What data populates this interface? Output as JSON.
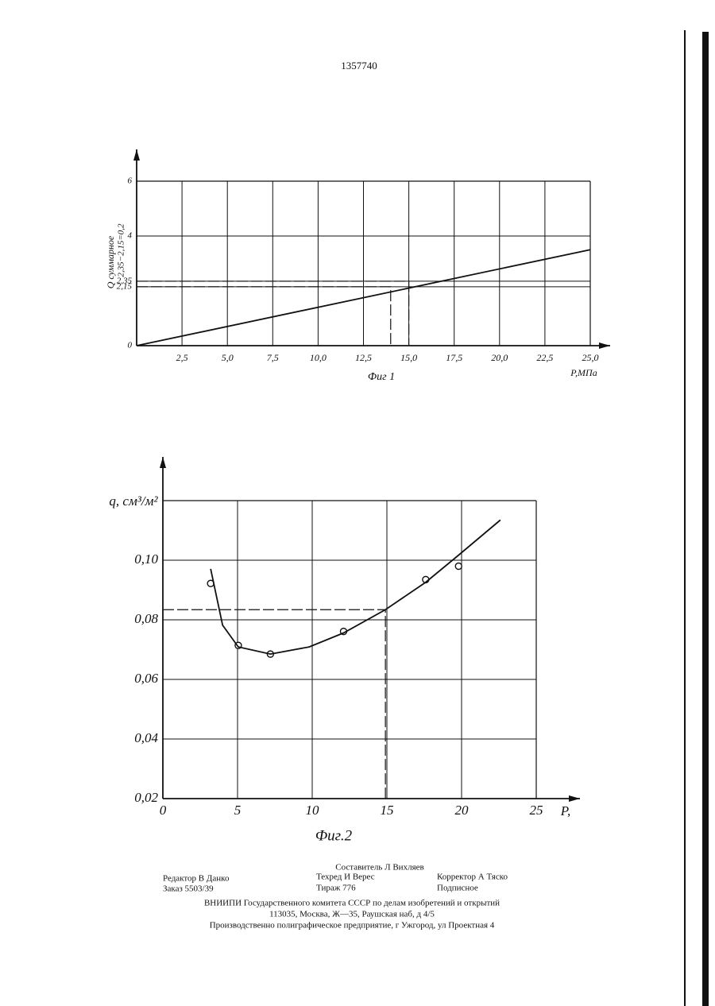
{
  "header": {
    "page_number": "1357740"
  },
  "chart_data": [
    {
      "type": "line",
      "caption": "Фиг 1",
      "xlabel": "P,МПа",
      "ylabel": "Q суммарное",
      "annotation": "2,35−2,15=0,2",
      "xlim": [
        0,
        25
      ],
      "ylim": [
        0,
        6
      ],
      "xticks": [
        {
          "value": 2.5,
          "label": "2,5"
        },
        {
          "value": 5,
          "label": "5,0"
        },
        {
          "value": 7.5,
          "label": "7,5"
        },
        {
          "value": 10,
          "label": "10,0"
        },
        {
          "value": 12.5,
          "label": "12,5"
        },
        {
          "value": 15,
          "label": "15,0"
        },
        {
          "value": 17.5,
          "label": "17,5"
        },
        {
          "value": 20,
          "label": "20,0"
        },
        {
          "value": 22.5,
          "label": "22,5"
        },
        {
          "value": 25,
          "label": "25,0"
        }
      ],
      "yticks": [
        0,
        {
          "value": 2.15,
          "label": "2,15"
        },
        {
          "value": 2.35,
          "label": "2,35"
        },
        4,
        6
      ],
      "grid": true,
      "series": [
        {
          "x": [
            0,
            25
          ],
          "values": [
            0,
            3.5
          ],
          "color": "#111111"
        },
        {
          "x": [
            0,
            14,
            14
          ],
          "values": [
            2.15,
            2.15,
            0
          ],
          "color": "#111111",
          "dash": true
        },
        {
          "x": [
            0,
            15,
            15
          ],
          "values": [
            2.35,
            2.35,
            0
          ],
          "color": "#111111",
          "dash": true
        }
      ]
    },
    {
      "type": "scatter",
      "caption": "Фиг.2",
      "xlabel": "P,",
      "ylabel": "q, см³/м²",
      "xlim": [
        0,
        25
      ],
      "ylim": [
        0.02,
        0.12
      ],
      "xticks": [
        0,
        5,
        10,
        15,
        20,
        25
      ],
      "yticks": [
        {
          "value": 0.02,
          "label": "0,02"
        },
        {
          "value": 0.04,
          "label": "0,04"
        },
        {
          "value": 0.06,
          "label": "0,06"
        },
        {
          "value": 0.08,
          "label": "0,08"
        },
        {
          "value": 0.1,
          "label": "0,10"
        }
      ],
      "grid": true,
      "series": [
        {
          "x": [
            3.2,
            5.05,
            7.2,
            12.1,
            17.6,
            19.8
          ],
          "values": [
            0.0922,
            0.0714,
            0.0685,
            0.0761,
            0.0935,
            0.098
          ],
          "color": "#111111",
          "marker": "circle"
        },
        {
          "x": [
            3.2,
            4.0,
            5.05,
            7.2,
            9.8,
            12.1,
            14.9,
            17.6,
            19.8,
            22.6
          ],
          "values": [
            0.0971,
            0.0782,
            0.0709,
            0.0685,
            0.0709,
            0.0756,
            0.0834,
            0.0926,
            0.1017,
            0.1135
          ],
          "color": "#111111"
        },
        {
          "x": [
            0,
            14.9,
            14.9
          ],
          "values": [
            0.0834,
            0.0834,
            0.02
          ],
          "color": "#111111",
          "dash": true
        }
      ]
    }
  ],
  "footer": {
    "compiler": "Составитель Л Вихляев",
    "editor": "Редактор В Данко",
    "techred": "Техред И Верес",
    "corrector": "Корректор А Тяско",
    "order": "Заказ 5503/39",
    "circulation": "Тираж 776",
    "subscription": "Подписное",
    "org": "ВНИИПИ Государственного комитета СССР по делам изобретений и открытий",
    "address": "113035, Москва, Ж—35, Раушская наб, д 4/5",
    "printer": "Производственно полиграфическое предприятие, г Ужгород, ул Проектная 4"
  }
}
